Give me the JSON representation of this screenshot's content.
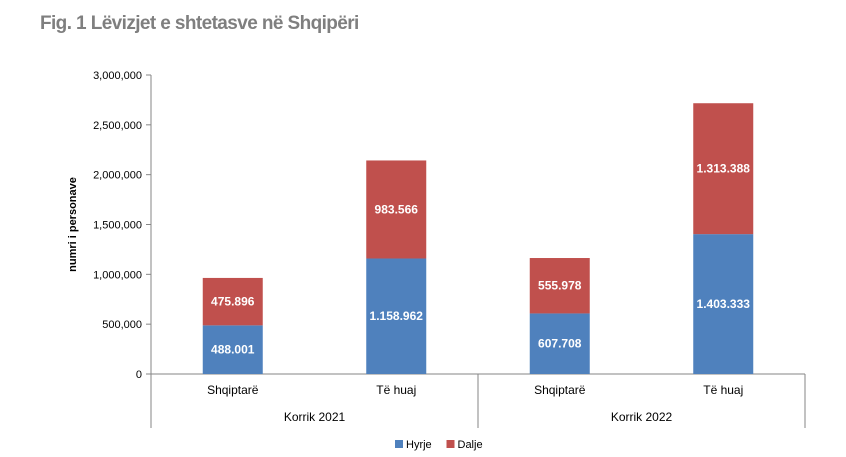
{
  "figure": {
    "title": "Fig. 1 Lëvizjet e shtetasve në Shqipëri"
  },
  "chart_data": {
    "type": "bar",
    "stacked": true,
    "ylabel": "numri i personave",
    "ylim": [
      0,
      3000000
    ],
    "y_ticks": [
      0,
      500000,
      1000000,
      1500000,
      2000000,
      2500000,
      3000000
    ],
    "y_tick_labels": [
      "0",
      "500,000",
      "1,000,000",
      "1,500,000",
      "2,000,000",
      "2,500,000",
      "3,000,000"
    ],
    "categories": [
      "Shqiptarë",
      "Të huaj",
      "Shqiptarë",
      "Të huaj"
    ],
    "groups": [
      {
        "label": "Korrik 2021",
        "count": 2
      },
      {
        "label": "Korrik 2022",
        "count": 2
      }
    ],
    "series": [
      {
        "name": "Hyrje",
        "color": "#4f81bd",
        "values": [
          488001,
          1158962,
          607708,
          1403333
        ],
        "labels": [
          "488.001",
          "1.158.962",
          "607.708",
          "1.403.333"
        ]
      },
      {
        "name": "Dalje",
        "color": "#c0504d",
        "values": [
          475896,
          983566,
          555978,
          1313388
        ],
        "labels": [
          "475.896",
          "983.566",
          "555.978",
          "1.313.388"
        ]
      }
    ],
    "grid": false,
    "legend_position": "bottom"
  }
}
